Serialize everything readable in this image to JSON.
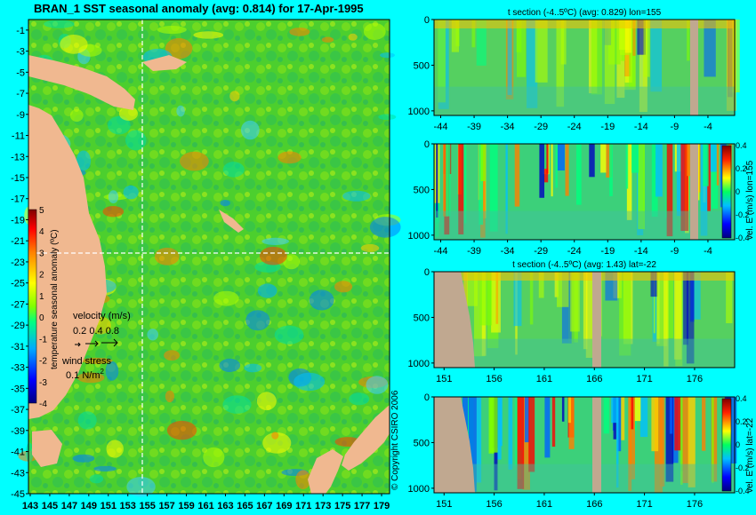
{
  "main_map": {
    "title": "BRAN_1 SST seasonal anomaly (avg: 0.814) for 17-Apr-1995",
    "lat_ticks": [
      "-1",
      "-3",
      "-5",
      "-7",
      "-9",
      "-11",
      "-13",
      "-15",
      "-17",
      "-19",
      "-21",
      "-23",
      "-25",
      "-27",
      "-29",
      "-31",
      "-33",
      "-35",
      "-37",
      "-39",
      "-41",
      "-43",
      "-45"
    ],
    "lon_ticks": [
      "143",
      "145",
      "147",
      "149",
      "151",
      "153",
      "155",
      "157",
      "159",
      "161",
      "163",
      "165",
      "167",
      "169",
      "171",
      "173",
      "175",
      "177",
      "179"
    ],
    "colorbar_label": "temperature seasonal anomaly (ºC)",
    "colorbar_ticks": [
      "5",
      "4",
      "3",
      "2",
      "1",
      "0",
      "-1",
      "-2",
      "-3",
      "-4"
    ],
    "velocity_label": "velocity (m/s)",
    "velocity_scale": "0.2 0.4 0.8",
    "wind_label": "wind stress",
    "wind_scale": "0.1 N/m",
    "wind_scale_sup": "2",
    "copyright": "© Copyright CSIRO 2006",
    "crosshair": {
      "lon": 155,
      "lat": -22
    }
  },
  "panels": [
    {
      "id": "t-lon155",
      "title": "t section (-4..5ºC) (avg: 0.829) lon=155",
      "y_ticks": [
        "0",
        "500",
        "1000"
      ],
      "x_ticks": [
        "-44",
        "-39",
        "-34",
        "-29",
        "-24",
        "-19",
        "-14",
        "-9",
        "-4"
      ],
      "colorbar": false
    },
    {
      "id": "v-lon155",
      "title": "",
      "y_ticks": [
        "0",
        "500",
        "1000"
      ],
      "x_ticks": [
        "-44",
        "-39",
        "-34",
        "-29",
        "-24",
        "-19",
        "-14",
        "-9",
        "-4"
      ],
      "colorbar": true,
      "colorbar_label": "vel. E (m/s) lon=155",
      "colorbar_ticks": [
        "0.4",
        "0.2",
        "0",
        "-0.2",
        "-0.4"
      ]
    },
    {
      "id": "t-lat22",
      "title": "t section (-4..5ºC) (avg: 1.43) lat=-22",
      "y_ticks": [
        "0",
        "500",
        "1000"
      ],
      "x_ticks": [
        "151",
        "156",
        "161",
        "166",
        "171",
        "176"
      ],
      "colorbar": false
    },
    {
      "id": "v-lat22",
      "title": "",
      "y_ticks": [
        "0",
        "500",
        "1000"
      ],
      "x_ticks": [
        "151",
        "156",
        "161",
        "166",
        "171",
        "176"
      ],
      "colorbar": true,
      "colorbar_label": "vel. E (m/s) lat=-22",
      "colorbar_ticks": [
        "0.4",
        "0.2",
        "0",
        "-0.2",
        "-0.4"
      ]
    }
  ],
  "chart_data": [
    {
      "type": "heatmap",
      "title": "BRAN_1 SST seasonal anomaly (avg: 0.814) for 17-Apr-1995",
      "xlim": [
        143,
        180
      ],
      "ylim": [
        -45,
        0
      ],
      "colorbar_range": [
        -4,
        5
      ]
    },
    {
      "type": "heatmap",
      "title": "t section (-4..5ºC) (avg: 0.829) lon=155",
      "xlim": [
        -45,
        0
      ],
      "ylim": [
        1050,
        0
      ]
    },
    {
      "type": "heatmap",
      "title": "",
      "xlim": [
        -45,
        0
      ],
      "ylim": [
        1050,
        0
      ],
      "colorbar_range": [
        -0.4,
        0.4
      ]
    },
    {
      "type": "heatmap",
      "title": "t section (-4..5ºC) (avg: 1.43) lat=-22",
      "xlim": [
        150,
        180
      ],
      "ylim": [
        1050,
        0
      ]
    },
    {
      "type": "heatmap",
      "title": "",
      "xlim": [
        150,
        180
      ],
      "ylim": [
        1050,
        0
      ],
      "colorbar_range": [
        -0.4,
        0.4
      ]
    }
  ]
}
